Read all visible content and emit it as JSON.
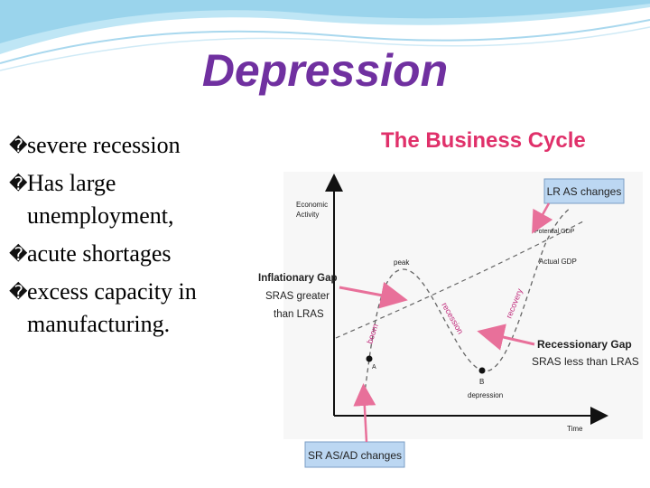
{
  "slide": {
    "title": "Depression",
    "bullet_marker": "�",
    "bullets": [
      "severe recession",
      "Has large unemployment,",
      "acute shortages",
      "excess capacity in manufacturing."
    ]
  },
  "diagram": {
    "heading": "The Business Cycle",
    "y_axis_label_1": "Economic",
    "y_axis_label_2": "Activity",
    "x_axis_label": "Time",
    "potential_gdp_label": "Potential GDP",
    "actual_gdp_label": "Actual GDP",
    "lr_as_callout": "LR AS changes",
    "sr_as_callout": "SR AS/AD changes",
    "inflationary_gap": [
      "Inflationary Gap",
      "SRAS greater",
      "than LRAS"
    ],
    "recessionary_gap": [
      "Recessionary Gap",
      "SRAS less than LRAS"
    ],
    "point_a": "A",
    "point_b": "B",
    "peak_label": "peak",
    "depression_label": "depression",
    "boom_label": "boom",
    "recession_label": "recession",
    "recovery_label": "recovery"
  },
  "colors": {
    "title": "#7030a0",
    "heading": "#e0306a",
    "arrow": "#e8709a",
    "callout_fill": "#bcd7f2",
    "callout_stroke": "#7a9ec4",
    "phase_label": "#c0287a",
    "banner": "#9ad4ec"
  }
}
